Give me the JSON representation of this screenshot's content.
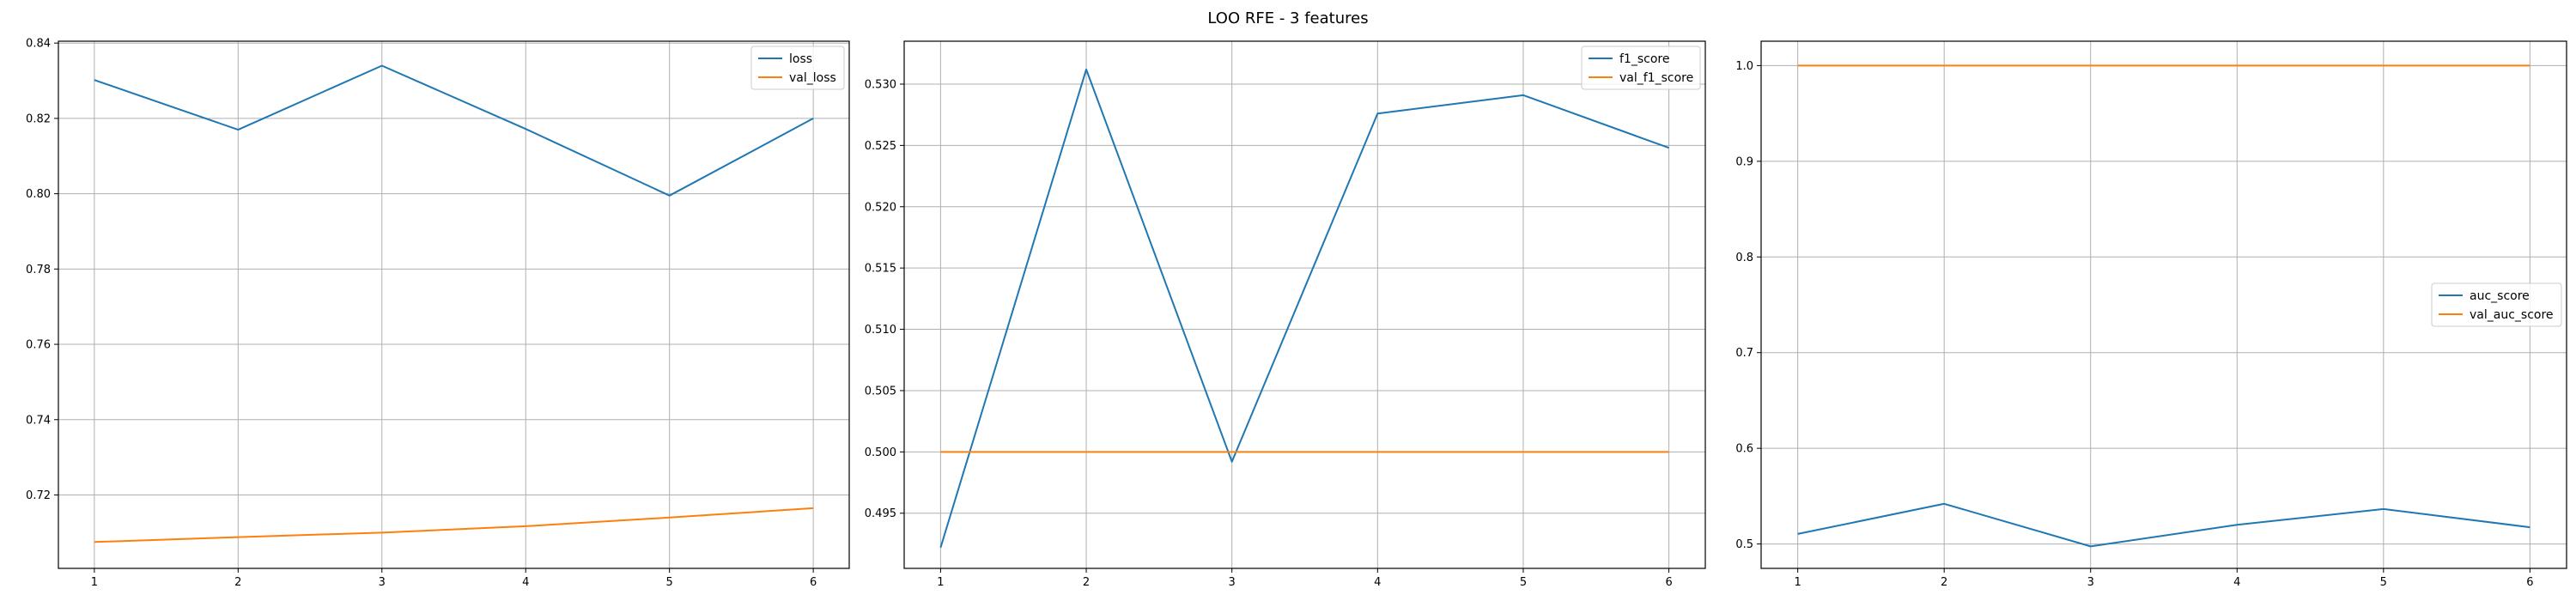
{
  "figure": {
    "title": "LOO RFE - 3 features"
  },
  "chart_data": [
    {
      "type": "line",
      "title": "",
      "xlabel": "",
      "ylabel": "",
      "x": [
        1,
        2,
        3,
        4,
        5,
        6
      ],
      "xticks": [
        "1",
        "2",
        "3",
        "4",
        "5",
        "6"
      ],
      "xlim": [
        0.75,
        6.25
      ],
      "ylim": [
        0.7005,
        0.8405
      ],
      "yticks": [
        0.72,
        0.74,
        0.76,
        0.78,
        0.8,
        0.82,
        0.84
      ],
      "ytick_labels": [
        "0.72",
        "0.74",
        "0.76",
        "0.78",
        "0.80",
        "0.82",
        "0.84"
      ],
      "grid": true,
      "legend_position": "upper-right",
      "series": [
        {
          "name": "loss",
          "color": "#1f77b4",
          "values": [
            0.8302,
            0.817,
            0.834,
            0.8172,
            0.7995,
            0.82
          ]
        },
        {
          "name": "val_loss",
          "color": "#ff7f0e",
          "values": [
            0.7075,
            0.7088,
            0.71,
            0.7117,
            0.714,
            0.7165
          ]
        }
      ]
    },
    {
      "type": "line",
      "title": "",
      "xlabel": "",
      "ylabel": "",
      "x": [
        1,
        2,
        3,
        4,
        5,
        6
      ],
      "xticks": [
        "1",
        "2",
        "3",
        "4",
        "5",
        "6"
      ],
      "xlim": [
        0.75,
        6.25
      ],
      "ylim": [
        0.4905,
        0.5335
      ],
      "yticks": [
        0.495,
        0.5,
        0.505,
        0.51,
        0.515,
        0.52,
        0.525,
        0.53
      ],
      "ytick_labels": [
        "0.495",
        "0.500",
        "0.505",
        "0.510",
        "0.515",
        "0.520",
        "0.525",
        "0.530"
      ],
      "grid": true,
      "legend_position": "upper-right",
      "series": [
        {
          "name": "f1_score",
          "color": "#1f77b4",
          "values": [
            0.4922,
            0.5312,
            0.4992,
            0.5276,
            0.5291,
            0.5248
          ]
        },
        {
          "name": "val_f1_score",
          "color": "#ff7f0e",
          "values": [
            0.5,
            0.5,
            0.5,
            0.5,
            0.5,
            0.5
          ]
        }
      ]
    },
    {
      "type": "line",
      "title": "",
      "xlabel": "",
      "ylabel": "",
      "x": [
        1,
        2,
        3,
        4,
        5,
        6
      ],
      "xticks": [
        "1",
        "2",
        "3",
        "4",
        "5",
        "6"
      ],
      "xlim": [
        0.75,
        6.25
      ],
      "ylim": [
        0.4745,
        1.0255
      ],
      "yticks": [
        0.5,
        0.6,
        0.7,
        0.8,
        0.9,
        1.0
      ],
      "ytick_labels": [
        "0.5",
        "0.6",
        "0.7",
        "0.8",
        "0.9",
        "1.0"
      ],
      "grid": true,
      "legend_position": "center-right",
      "series": [
        {
          "name": "auc_score",
          "color": "#1f77b4",
          "values": [
            0.5105,
            0.542,
            0.4975,
            0.52,
            0.5365,
            0.5175
          ]
        },
        {
          "name": "val_auc_score",
          "color": "#ff7f0e",
          "values": [
            1.0,
            1.0,
            1.0,
            1.0,
            1.0,
            1.0
          ]
        }
      ]
    }
  ]
}
